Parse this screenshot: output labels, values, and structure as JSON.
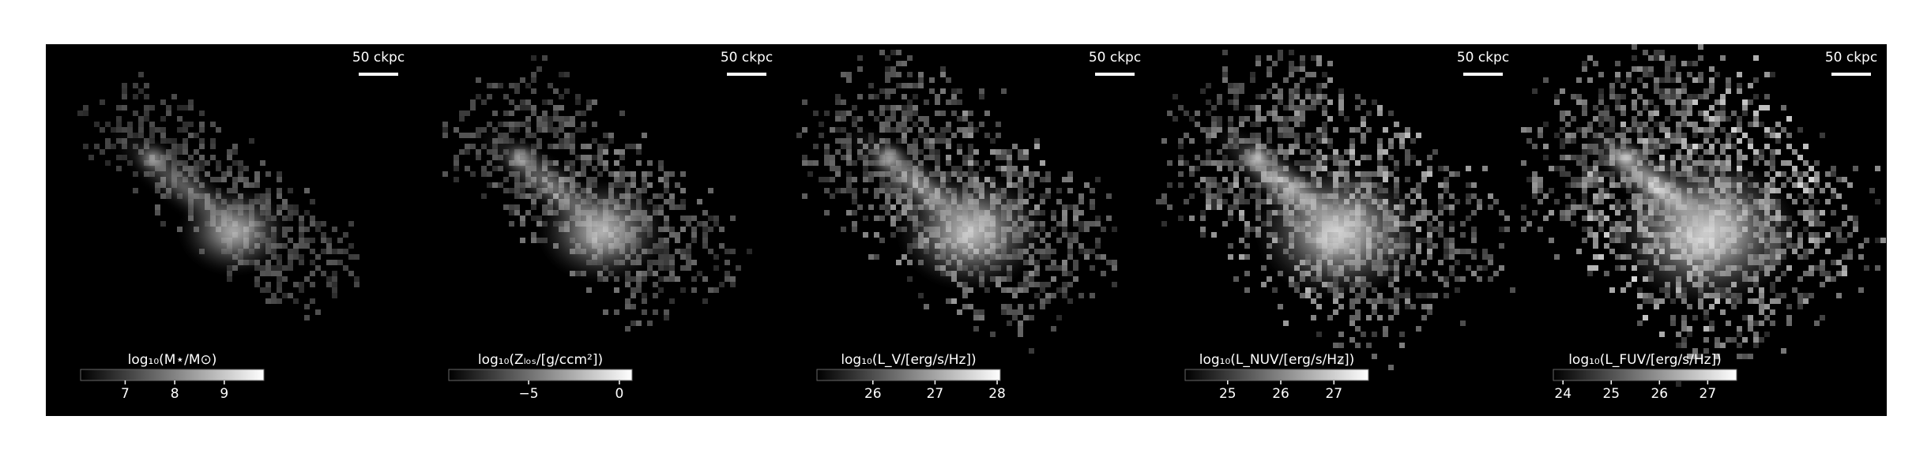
{
  "panels": [
    {
      "scale_bar": "50 ckpc",
      "colorbar_label": "log₁₀(M⋆/M⊙)",
      "clim": [
        6.1,
        9.8
      ],
      "ticks": [
        7,
        8,
        9
      ]
    },
    {
      "scale_bar": "50 ckpc",
      "colorbar_label": "log₁₀(Zₗₒₛ/[g/ccm²])",
      "clim": [
        -9.4,
        0.7
      ],
      "ticks": [
        {
          "value": -5,
          "label": "−5"
        },
        0
      ]
    },
    {
      "scale_bar": "50 ckpc",
      "colorbar_label": "log₁₀(L_V/[erg/s/Hz])",
      "clim": [
        25.1,
        28.05
      ],
      "ticks": [
        26,
        27,
        28
      ]
    },
    {
      "scale_bar": "50 ckpc",
      "colorbar_label": "log₁₀(L_NUV/[erg/s/Hz])",
      "clim": [
        24.2,
        27.65
      ],
      "ticks": [
        25,
        26,
        27
      ]
    },
    {
      "scale_bar": "50 ckpc",
      "colorbar_label": "log₁₀(L_FUV/[erg/s/Hz])",
      "clim": [
        23.8,
        27.6
      ],
      "ticks": [
        24,
        25,
        26,
        27
      ]
    }
  ]
}
